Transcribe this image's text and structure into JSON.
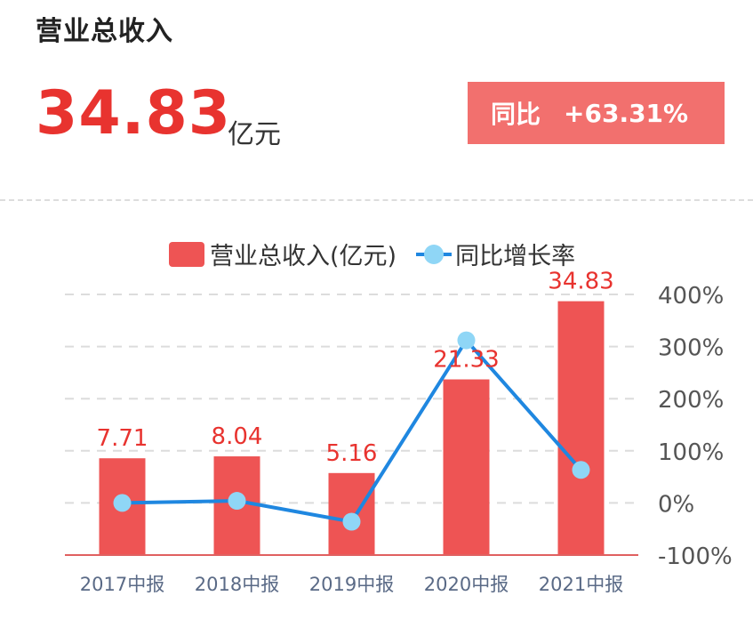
{
  "header": {
    "title": "营业总收入",
    "value": "34.83",
    "unit": "亿元",
    "yoy_label": "同比",
    "yoy_value": "+63.31%"
  },
  "colors": {
    "bar": "#ee5454",
    "line": "#1f87e0",
    "marker": "#8fd6f6",
    "value_label": "#e8332f",
    "badge": "#f2706e"
  },
  "chart_data": {
    "type": "bar",
    "categories": [
      "2017中报",
      "2018中报",
      "2019中报",
      "2020中报",
      "2021中报"
    ],
    "series": [
      {
        "name": "营业总收入(亿元)",
        "type": "bar",
        "axis": "left",
        "values": [
          7.71,
          8.04,
          5.16,
          21.33,
          34.83
        ]
      },
      {
        "name": "同比增长率",
        "type": "line",
        "axis": "right",
        "values": [
          0,
          4,
          -36,
          312,
          63.31
        ]
      }
    ],
    "left_axis": {
      "min": -9,
      "max": 36
    },
    "right_axis": {
      "min": -100,
      "max": 400,
      "ticks": [
        "400%",
        "300%",
        "200%",
        "100%",
        "0%",
        "-100%"
      ],
      "tick_values": [
        400,
        300,
        200,
        100,
        0,
        -100
      ]
    },
    "legend_position": "top",
    "grid": "dashed-horizontal"
  }
}
